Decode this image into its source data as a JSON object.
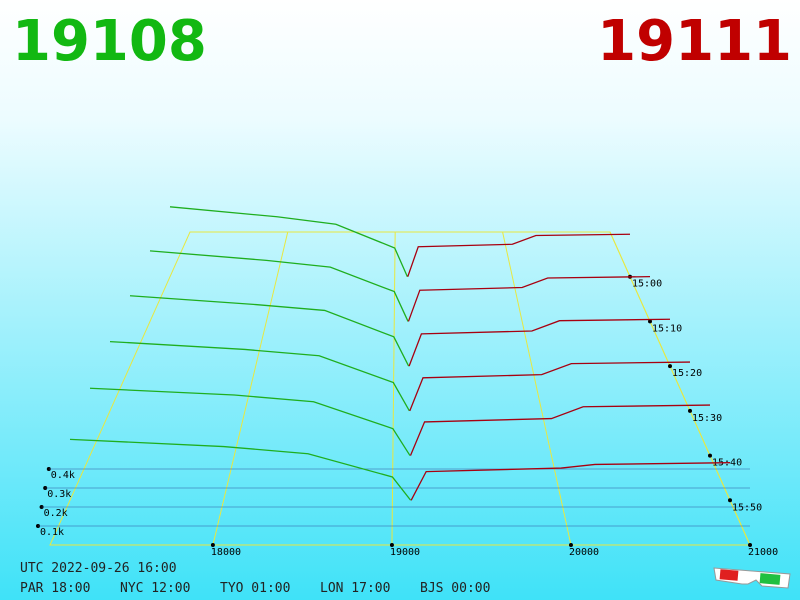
{
  "header": {
    "bid": "19108",
    "ask": "19111"
  },
  "chart_data": {
    "type": "depth3d",
    "xlim": [
      17090,
      21000
    ],
    "xticks": [
      18000,
      19000,
      20000,
      21000
    ],
    "zlim": [
      0,
      500
    ],
    "zticks": [
      {
        "value": 100,
        "label": "0.1k"
      },
      {
        "value": 200,
        "label": "0.2k"
      },
      {
        "value": 300,
        "label": "0.3k"
      },
      {
        "value": 400,
        "label": "0.4k"
      }
    ],
    "bid_color": "#1fae1f",
    "ask_color": "#a80010",
    "bid_prices": [
      17090,
      18000,
      18500,
      19000,
      19108
    ],
    "ask_prices": [
      19111,
      19200,
      20000,
      20200,
      21000
    ],
    "snapshots": [
      {
        "time": "15:00",
        "bid": [
          560,
          480,
          420,
          230,
          0
        ],
        "ask": [
          0,
          240,
          260,
          330,
          340
        ]
      },
      {
        "time": "15:10",
        "bid": [
          520,
          450,
          400,
          220,
          0
        ],
        "ask": [
          0,
          230,
          250,
          320,
          330
        ]
      },
      {
        "time": "15:20",
        "bid": [
          480,
          420,
          380,
          200,
          0
        ],
        "ask": [
          0,
          220,
          240,
          310,
          320
        ]
      },
      {
        "time": "15:30",
        "bid": [
          440,
          390,
          350,
          180,
          0
        ],
        "ask": [
          0,
          210,
          230,
          300,
          310
        ]
      },
      {
        "time": "15:40",
        "bid": [
          400,
          360,
          320,
          160,
          0
        ],
        "ask": [
          0,
          200,
          220,
          290,
          300
        ]
      },
      {
        "time": "15:50",
        "bid": [
          340,
          300,
          260,
          130,
          0
        ],
        "ask": [
          0,
          160,
          180,
          200,
          210
        ]
      }
    ]
  },
  "footer": {
    "utc": "UTC 2022-09-26 16:00",
    "cities": [
      "PAR 18:00",
      "NYC 12:00",
      "TYO 01:00",
      "LON 17:00",
      "BJS 00:00"
    ]
  }
}
